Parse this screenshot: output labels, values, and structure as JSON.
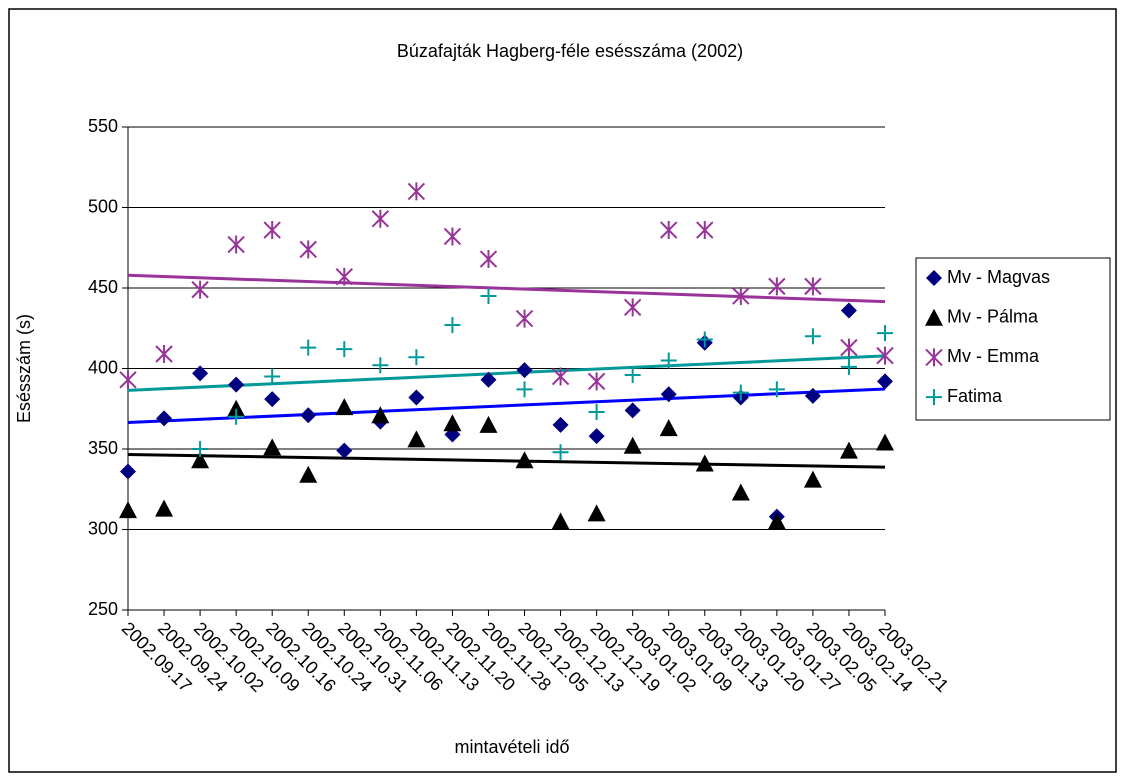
{
  "chart_data": {
    "type": "scatter",
    "title": "Búzafajták Hagberg-féle esésszáma (2002)",
    "x_label": "mintavételi idő",
    "y_label": "Esésszám (s)",
    "categories": [
      "2002.09.17",
      "2002.09.24",
      "2002.10.02",
      "2002.10.09",
      "2002.10.16",
      "2002.10.24",
      "2002.10.31",
      "2002.11.06",
      "2002.11.13",
      "2002.11.20",
      "2002.11.28",
      "2002.12.05",
      "2002.12.13",
      "2002.12.19",
      "2003.01.02",
      "2003.01.09",
      "2003.01.13",
      "2003.01.20",
      "2003.01.27",
      "2003.02.05",
      "2003.02.14",
      "2003.02.21"
    ],
    "series": [
      {
        "name": "Mv - Magvas",
        "color": "#000080",
        "marker": "diamond",
        "trendline_color": "#0000ff",
        "trendline": true,
        "values": [
          336,
          369,
          397,
          390,
          381,
          371,
          349,
          367,
          382,
          359,
          393,
          399,
          365,
          358,
          374,
          384,
          416,
          382,
          308,
          383,
          436,
          392
        ]
      },
      {
        "name": "Mv - Pálma",
        "color": "#000000",
        "marker": "triangle",
        "trendline_color": "#000000",
        "trendline": true,
        "values": [
          312,
          313,
          343,
          375,
          351,
          334,
          376,
          371,
          356,
          366,
          365,
          343,
          305,
          310,
          352,
          363,
          341,
          323,
          305,
          331,
          349,
          354
        ]
      },
      {
        "name": "Mv - Emma",
        "color": "#993399",
        "marker": "asterisk",
        "trendline_color": "#993399",
        "trendline": true,
        "values": [
          393,
          409,
          449,
          477,
          486,
          474,
          457,
          493,
          510,
          482,
          468,
          431,
          395,
          392,
          438,
          486,
          486,
          445,
          451,
          451,
          413,
          408
        ]
      },
      {
        "name": "Fatima",
        "color": "#009999",
        "marker": "plus",
        "trendline_color": "#009999",
        "trendline": true,
        "values": [
          null,
          null,
          350,
          370,
          395,
          413,
          412,
          402,
          407,
          427,
          445,
          387,
          348,
          373,
          396,
          405,
          418,
          385,
          387,
          420,
          401,
          422
        ]
      }
    ],
    "ylim": [
      250,
      550
    ],
    "yticks": [
      250,
      300,
      350,
      400,
      450,
      500,
      550
    ],
    "grid": true,
    "legend": "right"
  }
}
